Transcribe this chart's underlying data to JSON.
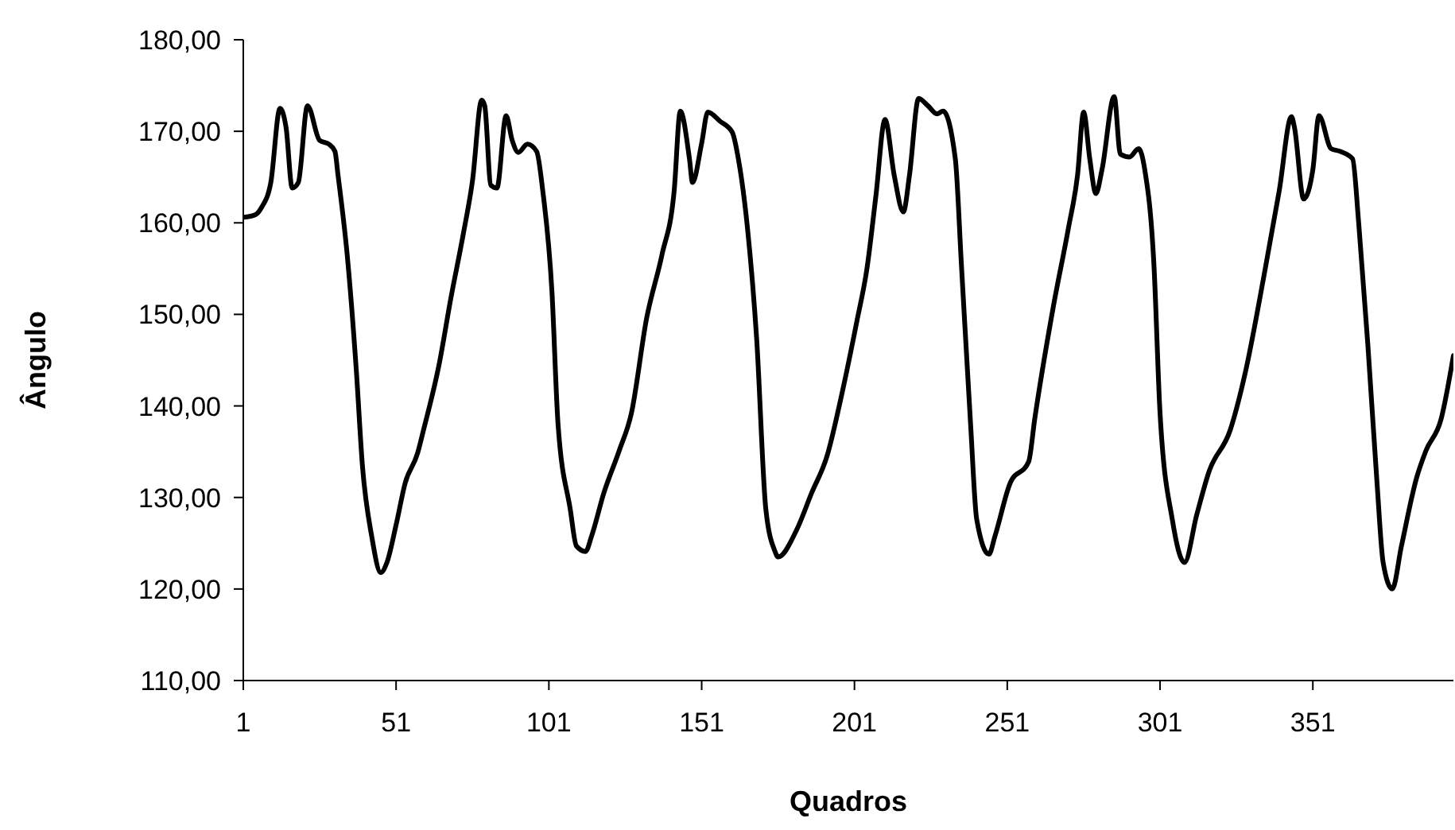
{
  "chart_data": {
    "type": "line",
    "xlabel": "Quadros",
    "ylabel": "Ângulo",
    "xlim": [
      1,
      397
    ],
    "xticks": [
      1,
      51,
      101,
      151,
      201,
      251,
      301,
      351
    ],
    "ylim": [
      110,
      180
    ],
    "yticks": [
      {
        "value": 110,
        "label": "110,00"
      },
      {
        "value": 120,
        "label": "120,00"
      },
      {
        "value": 130,
        "label": "130,00"
      },
      {
        "value": 140,
        "label": "140,00"
      },
      {
        "value": 150,
        "label": "150,00"
      },
      {
        "value": 160,
        "label": "160,00"
      },
      {
        "value": 170,
        "label": "170,00"
      },
      {
        "value": 180,
        "label": "180,00"
      }
    ],
    "grid": false,
    "marker": "none",
    "line_style": "solid",
    "series": [
      {
        "color": "#000000",
        "x": [
          1,
          5,
          7,
          10,
          13,
          15,
          17,
          19,
          22,
          26,
          29,
          31,
          32,
          35,
          38,
          40,
          43,
          46,
          48,
          51,
          54,
          58,
          60,
          65,
          69,
          73,
          76,
          79,
          80,
          82,
          84,
          87,
          89,
          91,
          94,
          97,
          99,
          102,
          104,
          108,
          110,
          113,
          115,
          119,
          124,
          128,
          133,
          138,
          142,
          144,
          147,
          148,
          151,
          153,
          157,
          161,
          163,
          166,
          169,
          172,
          175,
          176,
          182,
          187,
          192,
          197,
          202,
          205,
          208,
          211,
          214,
          217,
          219,
          222,
          225,
          228,
          230,
          234,
          236,
          239,
          241,
          245,
          247,
          252,
          258,
          260,
          266,
          271,
          274,
          276,
          278,
          280,
          282,
          286,
          288,
          291,
          294,
          296,
          299,
          301,
          305,
          309,
          313,
          317,
          324,
          329,
          335,
          340,
          344,
          345,
          348,
          351,
          353,
          357,
          360,
          364,
          366,
          369,
          372,
          374,
          377,
          380,
          385,
          388,
          393,
          397
        ],
        "values": [
          160.6,
          160.9,
          161.7,
          164.4,
          172.5,
          170.4,
          163.8,
          164.4,
          172.8,
          169.0,
          168.6,
          167.8,
          165.2,
          156.5,
          143.8,
          133.4,
          125.8,
          121.8,
          122.9,
          127.0,
          131.6,
          134.8,
          137.4,
          144.4,
          151.9,
          158.8,
          164.6,
          173.4,
          172.8,
          164.1,
          163.8,
          171.7,
          169.0,
          167.7,
          168.6,
          167.8,
          163.5,
          152.5,
          138.0,
          128.7,
          124.7,
          124.1,
          125.8,
          130.5,
          135.1,
          139.2,
          149.6,
          156.5,
          163.5,
          172.2,
          167.0,
          164.4,
          168.7,
          172.1,
          171.1,
          169.9,
          167.0,
          159.4,
          147.3,
          128.7,
          124.1,
          123.5,
          126.4,
          130.5,
          134.5,
          141.5,
          149.6,
          154.8,
          162.9,
          171.3,
          165.2,
          161.2,
          165.2,
          173.6,
          172.8,
          171.9,
          172.2,
          167.0,
          155.4,
          138.0,
          127.6,
          123.8,
          125.8,
          131.6,
          133.9,
          138.6,
          150.7,
          159.4,
          165.2,
          172.1,
          167.0,
          163.2,
          165.8,
          173.8,
          167.5,
          167.2,
          168.1,
          165.8,
          155.4,
          139.2,
          127.6,
          122.9,
          128.1,
          132.8,
          137.4,
          143.8,
          154.2,
          163.5,
          171.6,
          170.4,
          162.6,
          165.8,
          171.7,
          168.1,
          167.8,
          167.0,
          160.0,
          146.7,
          131.6,
          122.9,
          120.0,
          124.7,
          132.2,
          135.1,
          138.6,
          145.5
        ]
      }
    ]
  }
}
